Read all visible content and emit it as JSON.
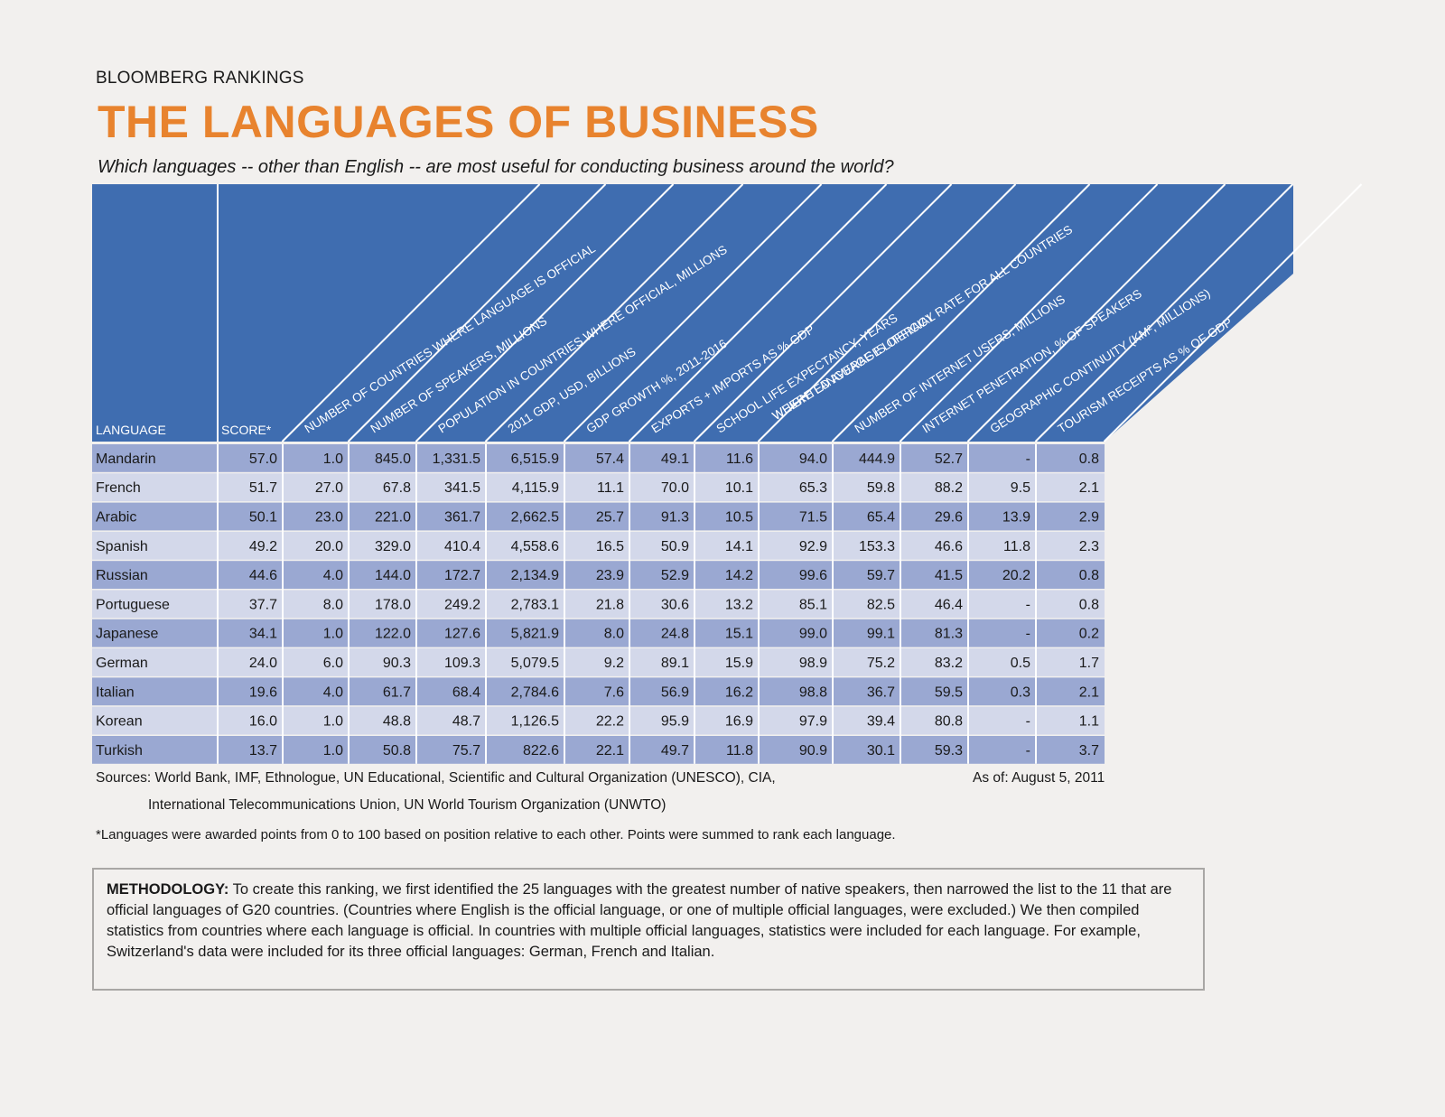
{
  "header": {
    "kicker": "BLOOMBERG RANKINGS",
    "title": "THE LANGUAGES OF BUSINESS",
    "subtitle": "Which languages -- other than English -- are most useful for conducting business around the world?"
  },
  "colors": {
    "header_blue": "#3f6db0",
    "row_dark": "#9aa8d2",
    "row_light": "#d3d8ea",
    "title_orange": "#e8832e"
  },
  "chart_data": {
    "type": "table",
    "title": "THE LANGUAGES OF BUSINESS",
    "label_headers": [
      "LANGUAGE",
      "SCORE*"
    ],
    "diagonal_headers": [
      "NUMBER OF COUNTRIES WHERE LANGUAGE IS OFFICIAL",
      "NUMBER OF SPEAKERS, MILLIONS",
      "POPULATION IN COUNTRIES WHERE OFFICIAL, MILLIONS",
      "2011 GDP, USD, BILLIONS",
      "GDP GROWTH %, 2011-2016",
      "EXPORTS + IMPORTS AS % GDP",
      "SCHOOL LIFE EXPECTANCY, YEARS",
      "WEIGHTED AVERAGE LITERACY RATE FOR ALL COUNTRIES|WHERE LANGUAGE IS OFFICIAL",
      "NUMBER OF INTERNET USERS, MILLIONS",
      "INTERNET PENETRATION, % OF SPEAKERS",
      "GEOGRAPHIC CONTINUITY (KM², MILLIONS)",
      "TOURISM RECEIPTS AS % OF GDP"
    ],
    "rows": [
      [
        "Mandarin",
        "57.0",
        "1.0",
        "845.0",
        "1,331.5",
        "6,515.9",
        "57.4",
        "49.1",
        "11.6",
        "94.0",
        "444.9",
        "52.7",
        "-",
        "0.8"
      ],
      [
        "French",
        "51.7",
        "27.0",
        "67.8",
        "341.5",
        "4,115.9",
        "11.1",
        "70.0",
        "10.1",
        "65.3",
        "59.8",
        "88.2",
        "9.5",
        "2.1"
      ],
      [
        "Arabic",
        "50.1",
        "23.0",
        "221.0",
        "361.7",
        "2,662.5",
        "25.7",
        "91.3",
        "10.5",
        "71.5",
        "65.4",
        "29.6",
        "13.9",
        "2.9"
      ],
      [
        "Spanish",
        "49.2",
        "20.0",
        "329.0",
        "410.4",
        "4,558.6",
        "16.5",
        "50.9",
        "14.1",
        "92.9",
        "153.3",
        "46.6",
        "11.8",
        "2.3"
      ],
      [
        "Russian",
        "44.6",
        "4.0",
        "144.0",
        "172.7",
        "2,134.9",
        "23.9",
        "52.9",
        "14.2",
        "99.6",
        "59.7",
        "41.5",
        "20.2",
        "0.8"
      ],
      [
        "Portuguese",
        "37.7",
        "8.0",
        "178.0",
        "249.2",
        "2,783.1",
        "21.8",
        "30.6",
        "13.2",
        "85.1",
        "82.5",
        "46.4",
        "-",
        "0.8"
      ],
      [
        "Japanese",
        "34.1",
        "1.0",
        "122.0",
        "127.6",
        "5,821.9",
        "8.0",
        "24.8",
        "15.1",
        "99.0",
        "99.1",
        "81.3",
        "-",
        "0.2"
      ],
      [
        "German",
        "24.0",
        "6.0",
        "90.3",
        "109.3",
        "5,079.5",
        "9.2",
        "89.1",
        "15.9",
        "98.9",
        "75.2",
        "83.2",
        "0.5",
        "1.7"
      ],
      [
        "Italian",
        "19.6",
        "4.0",
        "61.7",
        "68.4",
        "2,784.6",
        "7.6",
        "56.9",
        "16.2",
        "98.8",
        "36.7",
        "59.5",
        "0.3",
        "2.1"
      ],
      [
        "Korean",
        "16.0",
        "1.0",
        "48.8",
        "48.7",
        "1,126.5",
        "22.2",
        "95.9",
        "16.9",
        "97.9",
        "39.4",
        "80.8",
        "-",
        "1.1"
      ],
      [
        "Turkish",
        "13.7",
        "1.0",
        "50.8",
        "75.7",
        "822.6",
        "22.1",
        "49.7",
        "11.8",
        "90.9",
        "30.1",
        "59.3",
        "-",
        "3.7"
      ]
    ]
  },
  "footer": {
    "sources_line1": "Sources: World Bank, IMF, Ethnologue, UN Educational, Scientific and Cultural Organization (UNESCO), CIA,",
    "sources_line2": "International Telecommunications Union, UN World Tourism Organization (UNWTO)",
    "as_of": "As of: August 5, 2011",
    "note": "*Languages were awarded points from 0 to 100 based on position relative to each other. Points were summed to rank each language."
  },
  "methodology": {
    "label": "METHODOLOGY:",
    "text": "To create this ranking, we first identified the 25 languages with the greatest number of native speakers, then narrowed the list to the 11 that are official languages of G20 countries. (Countries where English is the official language, or one of multiple official languages, were excluded.) We then compiled statistics from countries where each language is official. In countries with multiple official languages, statistics were included for each language. For example, Switzerland's data were included for its three official languages: German, French and Italian."
  }
}
